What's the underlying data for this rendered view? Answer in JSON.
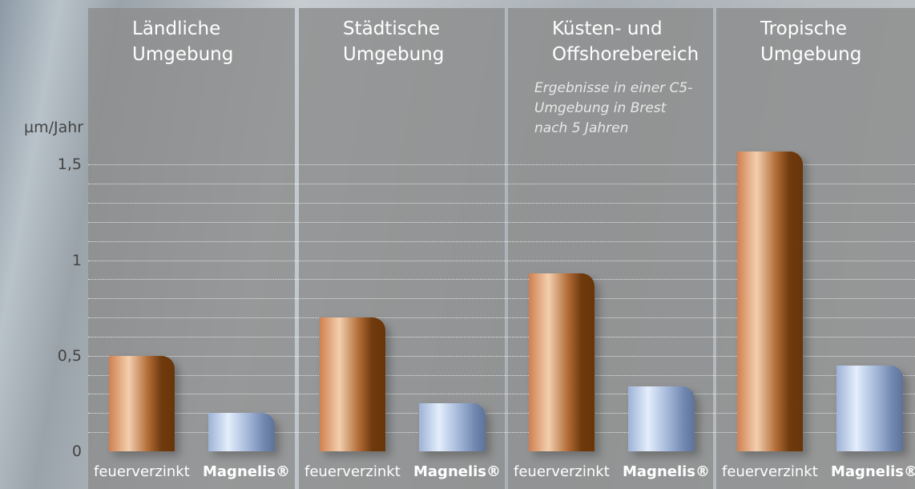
{
  "chart_data": {
    "type": "bar",
    "y_label": "µm/Jahr",
    "categories": [
      "Ländliche Umgebung",
      "Städtische Umgebung",
      "Küsten- und Offshorebereich",
      "Tropische Umgebung"
    ],
    "annotation": {
      "category": "Küsten- und Offshorebereich",
      "text": "Ergebnisse in einer C5-Umgebung in Brest nach 5 Jahren"
    },
    "series": [
      {
        "name": "feuerverzinkt",
        "color": "#a8643a",
        "values": [
          0.5,
          0.7,
          0.93,
          1.57
        ]
      },
      {
        "name": "Magnelis®",
        "color": "#8fa6cc",
        "values": [
          0.2,
          0.25,
          0.34,
          0.45
        ]
      }
    ],
    "ylim": [
      0,
      1.6
    ],
    "yticks": [
      0,
      {
        "value": 0.5,
        "label": "0,5"
      },
      1,
      {
        "value": 1.5,
        "label": "1,5"
      }
    ],
    "minor_yticks": [
      0.1,
      0.2,
      0.3,
      0.4,
      0.6,
      0.7,
      0.8,
      0.9,
      1.1,
      1.2,
      1.3,
      1.4
    ],
    "grid": true
  }
}
